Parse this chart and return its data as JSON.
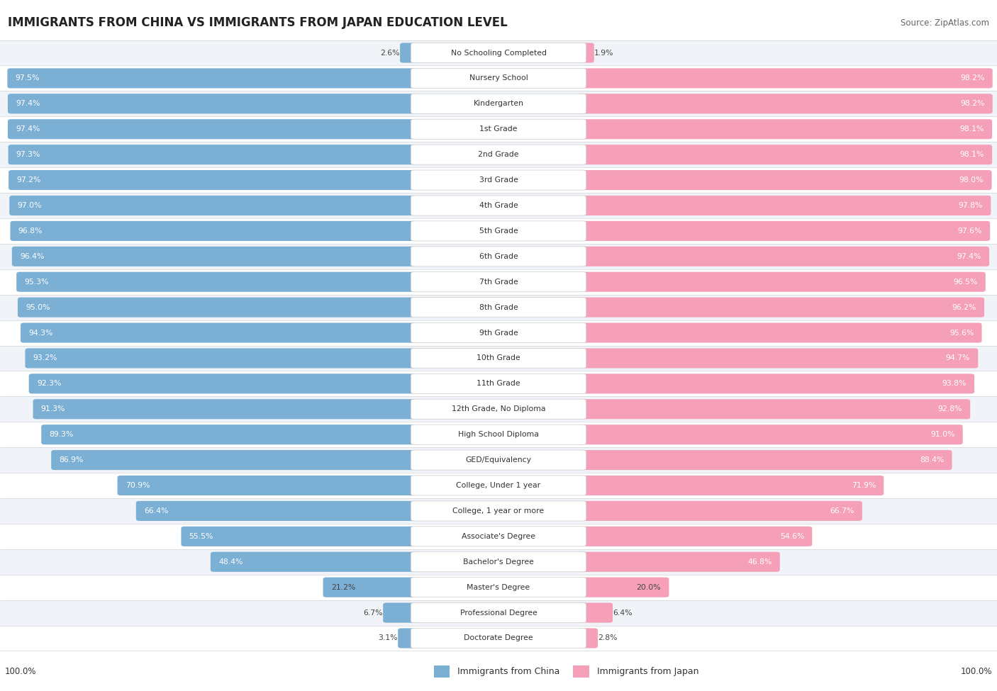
{
  "title": "IMMIGRANTS FROM CHINA VS IMMIGRANTS FROM JAPAN EDUCATION LEVEL",
  "source": "Source: ZipAtlas.com",
  "categories": [
    "No Schooling Completed",
    "Nursery School",
    "Kindergarten",
    "1st Grade",
    "2nd Grade",
    "3rd Grade",
    "4th Grade",
    "5th Grade",
    "6th Grade",
    "7th Grade",
    "8th Grade",
    "9th Grade",
    "10th Grade",
    "11th Grade",
    "12th Grade, No Diploma",
    "High School Diploma",
    "GED/Equivalency",
    "College, Under 1 year",
    "College, 1 year or more",
    "Associate's Degree",
    "Bachelor's Degree",
    "Master's Degree",
    "Professional Degree",
    "Doctorate Degree"
  ],
  "china_values": [
    2.6,
    97.5,
    97.4,
    97.4,
    97.3,
    97.2,
    97.0,
    96.8,
    96.4,
    95.3,
    95.0,
    94.3,
    93.2,
    92.3,
    91.3,
    89.3,
    86.9,
    70.9,
    66.4,
    55.5,
    48.4,
    21.2,
    6.7,
    3.1
  ],
  "japan_values": [
    1.9,
    98.2,
    98.2,
    98.1,
    98.1,
    98.0,
    97.8,
    97.6,
    97.4,
    96.5,
    96.2,
    95.6,
    94.7,
    93.8,
    92.8,
    91.0,
    88.4,
    71.9,
    66.7,
    54.6,
    46.8,
    20.0,
    6.4,
    2.8
  ],
  "china_color": "#7bafd4",
  "japan_color": "#f5a0b8",
  "legend_china": "Immigrants from China",
  "legend_japan": "Immigrants from Japan",
  "fig_width": 14.06,
  "fig_height": 9.75,
  "row_colors": [
    "#f0f4f8",
    "#ffffff"
  ]
}
